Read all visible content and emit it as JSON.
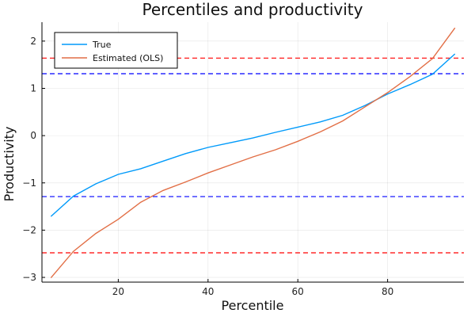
{
  "chart_data": {
    "type": "line",
    "title": "Percentiles and productivity",
    "xlabel": "Percentile",
    "ylabel": "Productivity",
    "xlim": [
      3,
      97
    ],
    "ylim": [
      -3.1,
      2.4
    ],
    "xticks": [
      20,
      40,
      60,
      80
    ],
    "yticks": [
      -3,
      -2,
      -1,
      0,
      1,
      2
    ],
    "ytick_labels": [
      "−3",
      "−2",
      "−1",
      "0",
      "1",
      "2"
    ],
    "grid": true,
    "legend_position": "top-left",
    "x": [
      5,
      10,
      15,
      20,
      25,
      30,
      35,
      40,
      45,
      50,
      55,
      60,
      65,
      70,
      75,
      80,
      85,
      90,
      95
    ],
    "series": [
      {
        "name": "True",
        "color": "#009AFA",
        "values": [
          -1.71,
          -1.28,
          -1.02,
          -0.82,
          -0.7,
          -0.54,
          -0.38,
          -0.25,
          -0.15,
          -0.05,
          0.07,
          0.18,
          0.29,
          0.43,
          0.64,
          0.88,
          1.08,
          1.3,
          1.73
        ]
      },
      {
        "name": "Estimated (OLS)",
        "color": "#E26F46",
        "values": [
          -3.01,
          -2.45,
          -2.07,
          -1.77,
          -1.41,
          -1.16,
          -0.98,
          -0.79,
          -0.62,
          -0.45,
          -0.3,
          -0.12,
          0.08,
          0.31,
          0.61,
          0.91,
          1.25,
          1.63,
          2.28
        ]
      }
    ],
    "hlines": [
      {
        "y": 1.31,
        "color": "#0000FF",
        "style": "dashed"
      },
      {
        "y": -1.29,
        "color": "#0000FF",
        "style": "dashed"
      },
      {
        "y": 1.64,
        "color": "#FF0000",
        "style": "dashed"
      },
      {
        "y": -2.48,
        "color": "#FF0000",
        "style": "dashed"
      }
    ]
  }
}
